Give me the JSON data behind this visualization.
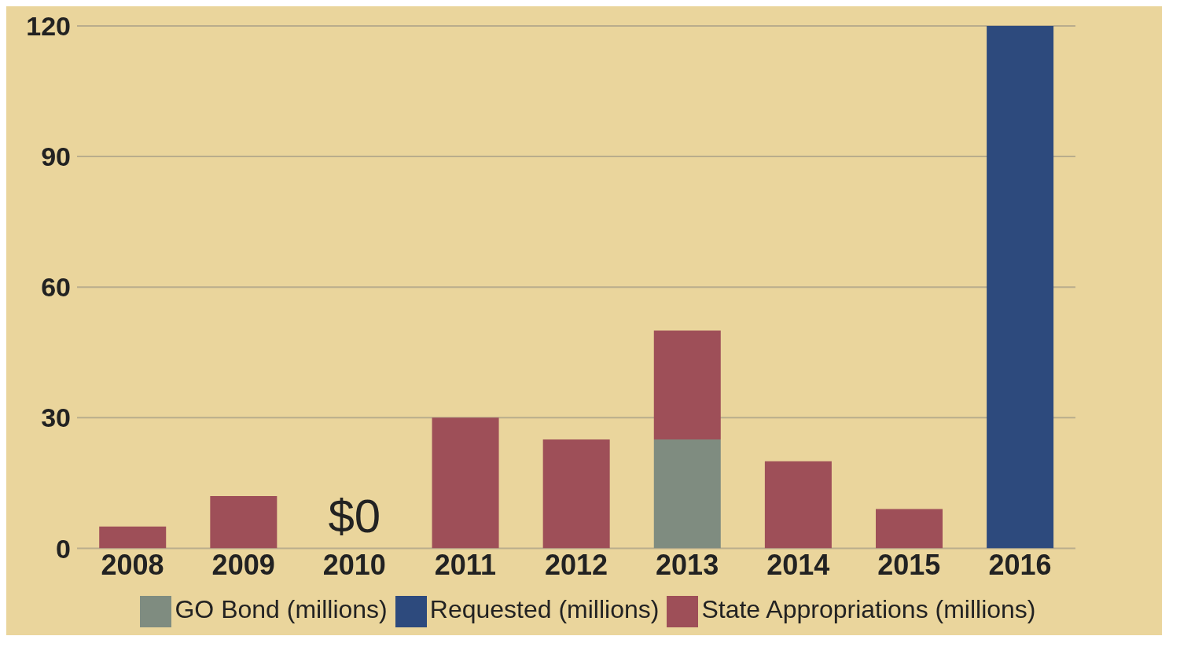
{
  "chart_data": {
    "type": "bar",
    "stacked": true,
    "categories": [
      "2008",
      "2009",
      "2010",
      "2011",
      "2012",
      "2013",
      "2014",
      "2015",
      "2016"
    ],
    "series": [
      {
        "name": "GO Bond (millions)",
        "color": "#7f8c80",
        "values": [
          null,
          null,
          null,
          null,
          null,
          25,
          null,
          null,
          null
        ]
      },
      {
        "name": "State Appropriations (millions)",
        "color": "#9e4f58",
        "values": [
          5,
          12,
          0,
          30,
          25,
          25,
          20,
          9,
          null
        ]
      },
      {
        "name": "Requested (millions)",
        "color": "#2d4a7d",
        "values": [
          null,
          null,
          null,
          null,
          null,
          null,
          null,
          null,
          120
        ]
      }
    ],
    "ylim": [
      0,
      120
    ],
    "yticks": [
      0,
      30,
      60,
      90,
      120
    ],
    "grid": "y",
    "legend": "bottom",
    "annotations": [
      {
        "text": "$0",
        "x": "2010",
        "y": 0
      }
    ]
  }
}
